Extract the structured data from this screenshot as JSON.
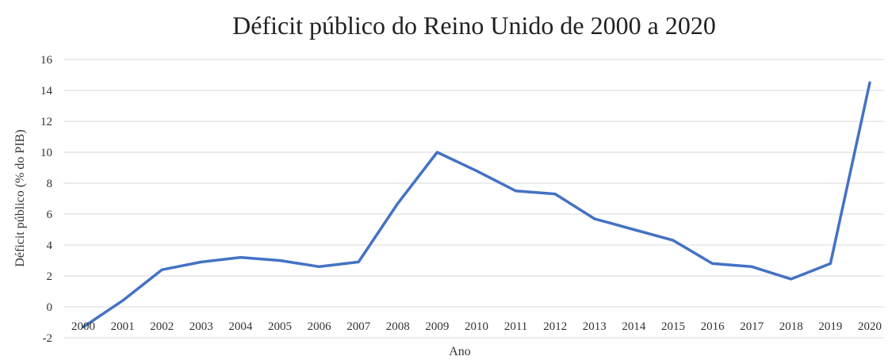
{
  "chart_data": {
    "type": "line",
    "title": "Déficit público do Reino Unido de 2000 a 2020",
    "xlabel": "Ano",
    "ylabel": "Déficit público (% do PIB)",
    "ylim": [
      -2,
      16
    ],
    "yticks": [
      "-2",
      "0",
      "2",
      "4",
      "6",
      "8",
      "10",
      "12",
      "14",
      "16"
    ],
    "categories": [
      "2000",
      "2001",
      "2002",
      "2003",
      "2004",
      "2005",
      "2006",
      "2007",
      "2008",
      "2009",
      "2010",
      "2011",
      "2012",
      "2013",
      "2014",
      "2015",
      "2016",
      "2017",
      "2018",
      "2019",
      "2020"
    ],
    "grid": true,
    "legend": "none",
    "series": [
      {
        "color": "#4472c4",
        "values": [
          -1.3,
          0.4,
          2.4,
          2.9,
          3.2,
          3.0,
          2.6,
          2.9,
          6.7,
          10.0,
          8.8,
          7.5,
          7.3,
          5.7,
          5.0,
          4.3,
          2.8,
          2.6,
          1.8,
          2.8,
          14.5
        ]
      }
    ]
  }
}
